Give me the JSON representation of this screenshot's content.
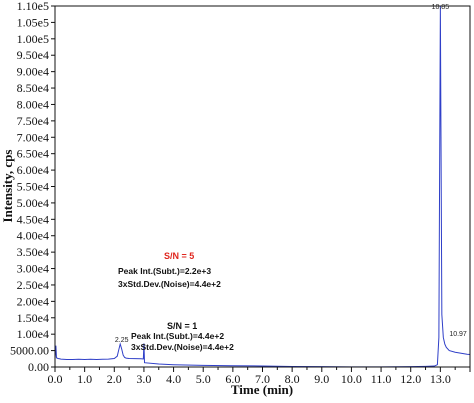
{
  "chart_data": {
    "type": "line",
    "xlabel": "Time (min)",
    "ylabel": "Intensity, cps",
    "xlim": [
      0,
      14
    ],
    "ylim": [
      0,
      110000
    ],
    "x_ticks": [
      "0.0",
      "1.0",
      "2.0",
      "3.0",
      "4.0",
      "5.0",
      "6.0",
      "7.0",
      "8.0",
      "9.0",
      "10.0",
      "11.0",
      "12.0",
      "13.0"
    ],
    "y_ticks": [
      "0.00",
      "5000.00",
      "1.00e4",
      "1.50e4",
      "2.00e4",
      "2.50e4",
      "3.00e4",
      "3.50e4",
      "4.00e4",
      "4.50e4",
      "5.00e4",
      "5.50e4",
      "6.00e4",
      "6.50e4",
      "7.00e4",
      "7.50e4",
      "8.00e4",
      "8.50e4",
      "9.00e4",
      "9.50e4",
      "1.00e5",
      "1.05e5",
      "1.10e5"
    ],
    "series": [
      {
        "color": "#2f3fc8",
        "x": [
          0.0,
          0.03,
          0.05,
          0.1,
          0.15,
          0.2,
          0.4,
          0.6,
          0.8,
          1.0,
          1.2,
          1.4,
          1.6,
          1.8,
          2.0,
          2.1,
          2.15,
          2.2,
          2.25,
          2.3,
          2.35,
          2.4,
          2.5,
          2.7,
          2.9,
          2.98,
          3.0,
          3.02,
          3.5,
          4.0,
          5.0,
          6.0,
          7.0,
          8.0,
          9.0,
          10.0,
          11.0,
          12.0,
          12.5,
          12.8,
          12.9,
          12.95,
          13.0,
          13.05,
          13.1,
          13.15,
          13.2,
          13.3,
          13.5,
          13.7,
          13.9,
          14.0
        ],
        "y": [
          2500,
          6500,
          2800,
          2600,
          2500,
          2400,
          2300,
          2300,
          2350,
          2300,
          2350,
          2300,
          2350,
          2400,
          2600,
          3300,
          5200,
          7000,
          5500,
          3600,
          2900,
          2700,
          2600,
          2550,
          2500,
          2450,
          7200,
          1300,
          900,
          700,
          500,
          400,
          300,
          150,
          100,
          50,
          50,
          100,
          200,
          300,
          700,
          9000,
          110000,
          16000,
          9000,
          7000,
          6000,
          5000,
          4500,
          4200,
          3900,
          3800
        ]
      }
    ],
    "peak_labels": [
      {
        "x": 2.25,
        "y": 7000,
        "text": "2.25"
      },
      {
        "x": 13.0,
        "y": 110000,
        "text": "10.85"
      },
      {
        "x": 13.1,
        "y": 8800,
        "text": "10.97"
      }
    ],
    "annotations": {
      "sn5_title": "S/N = 5",
      "sn5_peak": "Peak Int.(Subt.)=2.2e+3",
      "sn5_noise": "3xStd.Dev.(Noise)=4.4e+2",
      "sn1_title": "S/N = 1",
      "sn1_peak": "Peak Int.(Subt.)=4.4e+2",
      "sn1_noise": "3xStd.Dev.(Noise)=4.4e+2"
    },
    "colors": {
      "line": "#2f3fc8",
      "sn5_title": "#e0261e",
      "axis": "#111111"
    }
  }
}
